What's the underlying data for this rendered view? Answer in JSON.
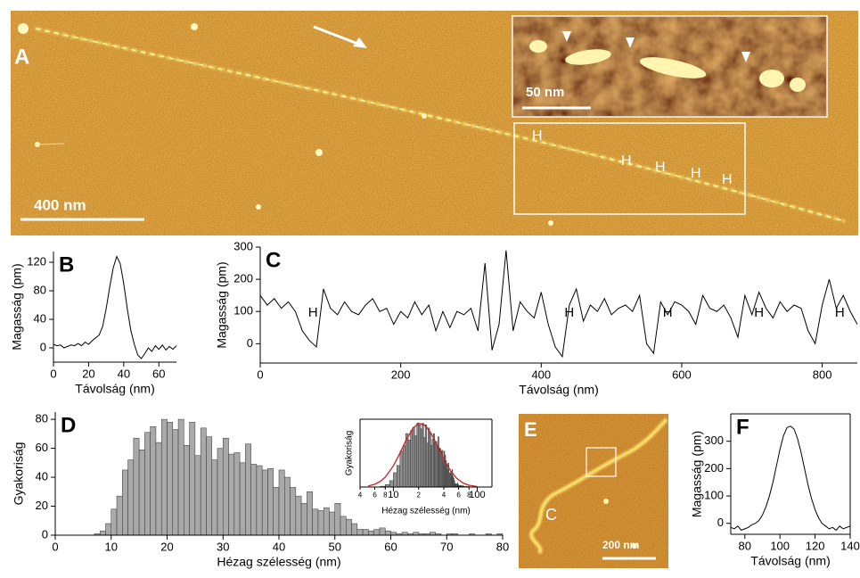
{
  "images": [
    {
      "label": "A",
      "scale_bar": "400 nm",
      "inset_scale_bar": "50 nm",
      "annotations": [
        "H",
        "H",
        "H",
        "H",
        "H"
      ]
    },
    {
      "label": "E",
      "scale_bar": "200 nm",
      "annotation": "C"
    }
  ],
  "chart_data": [
    {
      "type": "line",
      "panel_label": "B",
      "xlabel": "Távolság (nm)",
      "ylabel": "Magasság (pm)",
      "color": "#000000",
      "frame": "axes",
      "x": [
        0,
        2,
        4,
        6,
        8,
        10,
        12,
        14,
        16,
        18,
        20,
        22,
        24,
        26,
        28,
        30,
        32,
        34,
        36,
        38,
        40,
        42,
        44,
        46,
        48,
        50,
        52,
        54,
        56,
        58,
        60,
        62,
        64,
        66,
        68,
        70
      ],
      "values": [
        5,
        3,
        4,
        0,
        2,
        4,
        3,
        6,
        3,
        8,
        5,
        10,
        14,
        18,
        30,
        55,
        85,
        112,
        128,
        118,
        90,
        55,
        25,
        5,
        -10,
        -15,
        -8,
        0,
        -5,
        3,
        -2,
        4,
        -3,
        2,
        -2,
        3
      ],
      "xlim": [
        0,
        70
      ],
      "xticks": [
        0,
        20,
        40,
        60
      ],
      "ylim": [
        -20,
        135
      ],
      "yticks": [
        0,
        40,
        80,
        120
      ]
    },
    {
      "type": "line",
      "panel_label": "C",
      "xlabel": "Távolság (nm)",
      "ylabel": "Magasság (pm)",
      "color": "#000000",
      "frame": "axes",
      "x": [
        0,
        10,
        20,
        30,
        40,
        50,
        60,
        70,
        80,
        90,
        100,
        110,
        120,
        130,
        140,
        150,
        160,
        170,
        180,
        190,
        200,
        210,
        220,
        230,
        240,
        250,
        260,
        270,
        280,
        290,
        300,
        310,
        320,
        330,
        340,
        350,
        360,
        370,
        380,
        390,
        400,
        410,
        420,
        430,
        440,
        450,
        460,
        470,
        480,
        490,
        500,
        510,
        520,
        530,
        540,
        550,
        560,
        570,
        580,
        590,
        600,
        610,
        620,
        630,
        640,
        650,
        660,
        670,
        680,
        690,
        700,
        710,
        720,
        730,
        740,
        750,
        760,
        770,
        780,
        790,
        800,
        810,
        820,
        830,
        840,
        850
      ],
      "values": [
        150,
        120,
        140,
        110,
        130,
        100,
        40,
        10,
        -10,
        170,
        110,
        90,
        130,
        100,
        90,
        120,
        140,
        100,
        110,
        60,
        100,
        80,
        130,
        90,
        120,
        40,
        100,
        50,
        100,
        90,
        110,
        40,
        250,
        -20,
        60,
        290,
        40,
        130,
        100,
        80,
        160,
        60,
        -10,
        -40,
        120,
        170,
        70,
        120,
        100,
        140,
        90,
        110,
        120,
        100,
        150,
        0,
        -30,
        130,
        90,
        130,
        120,
        100,
        60,
        150,
        110,
        100,
        120,
        80,
        20,
        150,
        90,
        160,
        110,
        80,
        130,
        100,
        120,
        110,
        40,
        0,
        120,
        200,
        110,
        150,
        100,
        60
      ],
      "xlim": [
        0,
        850
      ],
      "xticks": [
        0,
        200,
        400,
        600,
        800
      ],
      "ylim": [
        -60,
        300
      ],
      "yticks": [
        0,
        100,
        200,
        300
      ],
      "annotations": [
        {
          "text": "H",
          "x": 75,
          "y": 95
        },
        {
          "text": "H",
          "x": 440,
          "y": 95
        },
        {
          "text": "H",
          "x": 580,
          "y": 95
        },
        {
          "text": "H",
          "x": 710,
          "y": 95
        },
        {
          "text": "H",
          "x": 825,
          "y": 95
        }
      ]
    },
    {
      "type": "histogram",
      "panel_label": "D",
      "xlabel": "Hézag szélesség (nm)",
      "ylabel": "Gyakoriság",
      "color": "#a9a9a9",
      "frame": "axes",
      "bins": [
        7,
        8,
        9,
        10,
        11,
        12,
        13,
        14,
        15,
        16,
        17,
        18,
        19,
        20,
        21,
        22,
        23,
        24,
        25,
        26,
        27,
        28,
        29,
        30,
        31,
        32,
        33,
        34,
        35,
        36,
        37,
        38,
        39,
        40,
        41,
        42,
        43,
        44,
        45,
        46,
        47,
        48,
        49,
        50,
        51,
        52,
        53,
        54,
        55,
        56,
        57,
        58,
        59,
        60,
        61,
        62,
        63,
        64,
        65,
        66,
        67,
        68,
        69,
        70,
        71,
        72,
        73,
        74,
        75,
        76,
        77,
        78,
        79,
        80
      ],
      "values": [
        1,
        3,
        8,
        18,
        27,
        45,
        52,
        67,
        59,
        71,
        75,
        64,
        80,
        78,
        73,
        80,
        62,
        78,
        55,
        74,
        68,
        52,
        60,
        67,
        56,
        57,
        50,
        63,
        49,
        48,
        45,
        46,
        33,
        45,
        40,
        33,
        27,
        22,
        30,
        18,
        17,
        19,
        16,
        22,
        13,
        11,
        8,
        4,
        4,
        3,
        4,
        5,
        3,
        2,
        1,
        2,
        1,
        2,
        1,
        1,
        2,
        1,
        0,
        1,
        1,
        0,
        0,
        1,
        0,
        0,
        1,
        0,
        1
      ],
      "xlim": [
        0,
        80
      ],
      "xticks": [
        0,
        10,
        20,
        30,
        40,
        50,
        60,
        70,
        80
      ],
      "ylim": [
        0,
        85
      ],
      "yticks": [
        0,
        20,
        40,
        60,
        80
      ]
    },
    {
      "type": "histogram",
      "xlabel": "Hézag szélesség (nm)",
      "ylabel": "Gyakoriság",
      "color": "#8f8f8f",
      "frame": "box",
      "log_x": true,
      "bins": [
        7,
        8,
        9,
        10,
        11,
        12,
        13,
        14,
        15,
        16,
        17,
        18,
        19,
        20,
        21,
        22,
        23,
        24,
        25,
        26,
        27,
        28,
        29,
        30,
        31,
        32,
        33,
        34,
        35,
        36,
        37,
        38,
        39,
        40,
        41,
        42,
        43,
        44,
        45,
        46,
        47,
        48,
        49,
        50,
        51,
        52,
        53,
        54,
        55,
        56,
        57,
        58,
        59,
        60,
        61,
        62,
        63,
        64,
        65,
        66,
        67,
        68,
        69,
        70,
        71,
        72,
        73,
        74,
        75,
        76,
        77,
        78,
        79,
        80
      ],
      "values": [
        1,
        3,
        8,
        18,
        27,
        45,
        52,
        67,
        59,
        71,
        75,
        64,
        80,
        78,
        73,
        80,
        62,
        78,
        55,
        74,
        68,
        52,
        60,
        67,
        56,
        57,
        50,
        63,
        49,
        48,
        45,
        46,
        33,
        45,
        40,
        33,
        27,
        22,
        30,
        18,
        17,
        19,
        16,
        22,
        13,
        11,
        8,
        4,
        4,
        3,
        4,
        5,
        3,
        2,
        1,
        2,
        1,
        2,
        1,
        1,
        2,
        1,
        0,
        1,
        1,
        0,
        0,
        1,
        0,
        0,
        1,
        0,
        1
      ],
      "curve": {
        "color": "#cc2020",
        "x": [
          5,
          6,
          7,
          8,
          10,
          12,
          14,
          17,
          20,
          24,
          28,
          33,
          40,
          48,
          57,
          68,
          80,
          100
        ],
        "values": [
          1.3,
          3.5,
          7.2,
          12.4,
          26.6,
          42.7,
          57.6,
          73.2,
          80,
          77.2,
          67.8,
          53.1,
          34.9,
          20.4,
          10.9,
          5,
          2.2,
          0.6
        ]
      },
      "xlim": [
        4,
        150
      ],
      "xticks": [
        4,
        6,
        8,
        10,
        {
          "value": 20,
          "label": "2"
        },
        {
          "value": 40,
          "label": "4"
        },
        {
          "value": 60,
          "label": "6"
        },
        {
          "value": 80,
          "label": "8"
        },
        100
      ],
      "ylim": [
        0,
        85
      ]
    },
    {
      "type": "line",
      "panel_label": "F",
      "xlabel": "Távolság (nm)",
      "ylabel": "Magasság (pm)",
      "color": "#000000",
      "frame": "box",
      "x": [
        72,
        74,
        76,
        78,
        80,
        82,
        84,
        86,
        88,
        90,
        92,
        94,
        96,
        98,
        100,
        102,
        104,
        106,
        108,
        110,
        112,
        114,
        116,
        118,
        120,
        122,
        124,
        126,
        128,
        130,
        132,
        134,
        136,
        138,
        140
      ],
      "values": [
        -15,
        -20,
        -10,
        -25,
        -20,
        -15,
        -5,
        0,
        10,
        30,
        60,
        100,
        150,
        210,
        270,
        320,
        350,
        355,
        345,
        310,
        260,
        200,
        140,
        90,
        50,
        20,
        0,
        -10,
        -20,
        -15,
        -25,
        -10,
        -20,
        -15,
        -10
      ],
      "xlim": [
        72,
        140
      ],
      "xticks": [
        80,
        100,
        120,
        140
      ],
      "ylim": [
        -40,
        400
      ],
      "yticks": [
        0,
        100,
        200,
        300
      ]
    }
  ]
}
